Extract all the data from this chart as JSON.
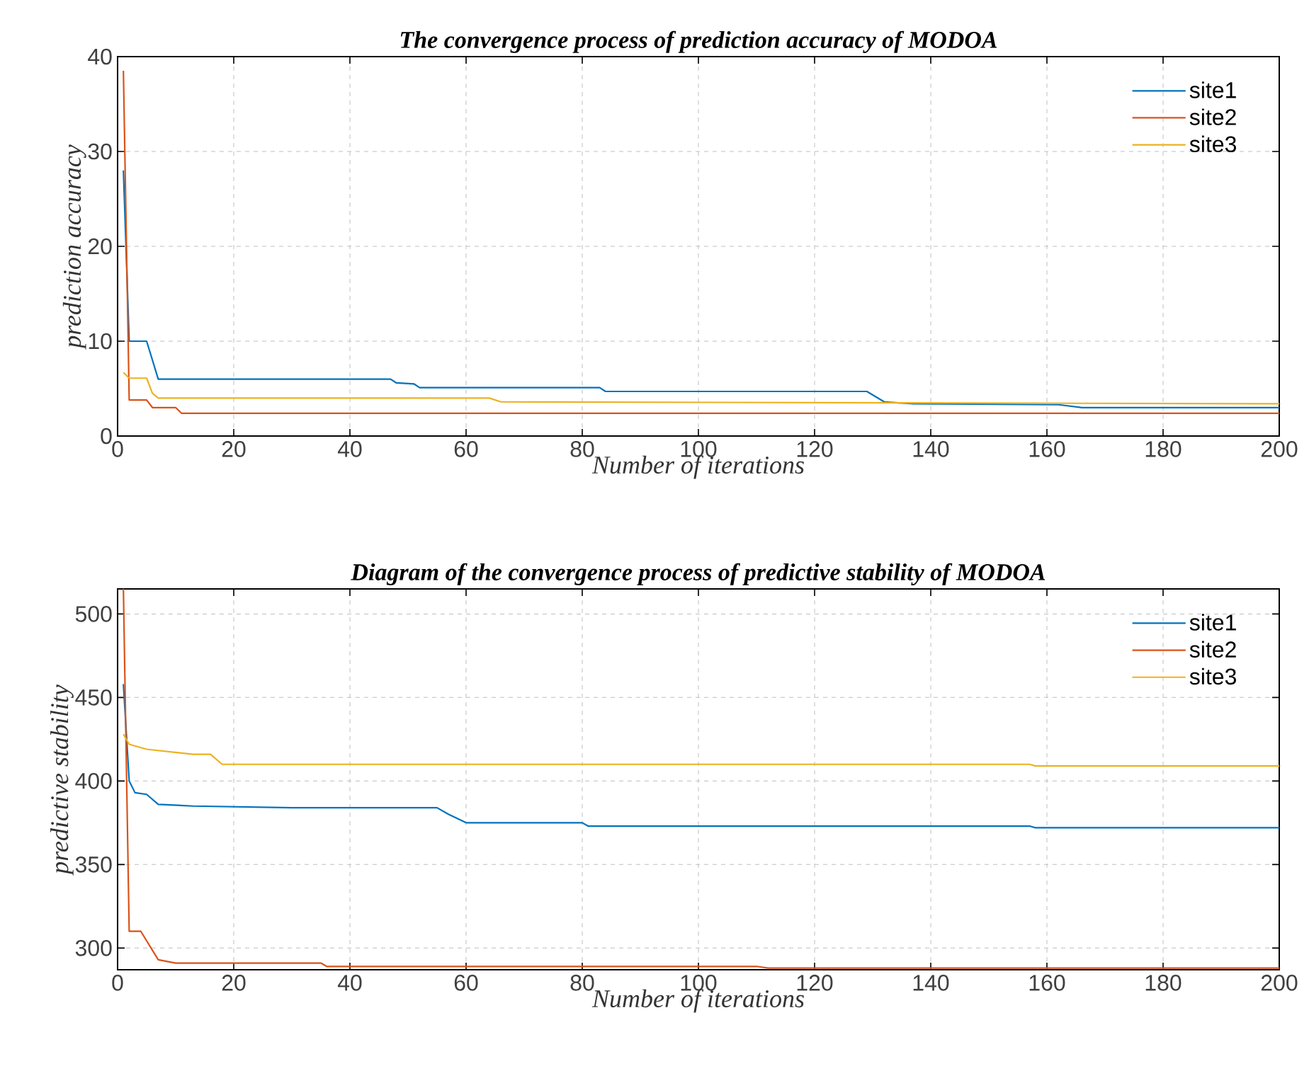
{
  "chart_data": [
    {
      "type": "line",
      "title": "The convergence process of prediction accuracy of MODOA",
      "xlabel": "Number of iterations",
      "ylabel": "prediction accuracy",
      "xlim": [
        0,
        200
      ],
      "ylim": [
        0,
        40
      ],
      "xticks": [
        0,
        20,
        40,
        60,
        80,
        100,
        120,
        140,
        160,
        180,
        200
      ],
      "yticks": [
        0,
        10,
        20,
        30,
        40
      ],
      "grid": true,
      "legend": "top right",
      "line_style": "solid",
      "series": [
        {
          "name": "site1",
          "color": "#0072bd",
          "x": [
            1,
            2,
            5,
            6,
            7,
            47,
            48,
            51,
            52,
            83,
            84,
            129,
            132,
            137,
            162,
            166,
            200
          ],
          "values": [
            28,
            10,
            10,
            8,
            6,
            6,
            5.6,
            5.5,
            5.1,
            5.1,
            4.7,
            4.7,
            3.6,
            3.4,
            3.3,
            3.0,
            3.0
          ]
        },
        {
          "name": "site2",
          "color": "#d95319",
          "x": [
            1,
            2,
            5,
            6,
            10,
            11,
            200
          ],
          "values": [
            38.5,
            3.8,
            3.8,
            3.0,
            3.0,
            2.4,
            2.4
          ]
        },
        {
          "name": "site3",
          "color": "#edb120",
          "x": [
            1,
            2,
            5,
            6,
            7,
            64,
            66,
            200
          ],
          "values": [
            6.7,
            6.1,
            6.1,
            4.5,
            4.0,
            4.0,
            3.6,
            3.4
          ]
        }
      ]
    },
    {
      "type": "line",
      "title": "Diagram of the convergence process of predictive stability of MODOA",
      "xlabel": "Number of iterations",
      "ylabel": "predictive stability",
      "xlim": [
        0,
        200
      ],
      "ylim": [
        287,
        515
      ],
      "xticks": [
        0,
        20,
        40,
        60,
        80,
        100,
        120,
        140,
        160,
        180,
        200
      ],
      "yticks": [
        300,
        350,
        400,
        450,
        500
      ],
      "grid": true,
      "legend": "top right",
      "line_style": "solid",
      "series": [
        {
          "name": "site1",
          "color": "#0072bd",
          "x": [
            1,
            2,
            3,
            5,
            7,
            13,
            30,
            55,
            57,
            60,
            80,
            81,
            157,
            158,
            200
          ],
          "values": [
            458,
            400,
            393,
            392,
            386,
            385,
            384,
            384,
            380,
            375,
            375,
            373,
            373,
            372,
            372
          ]
        },
        {
          "name": "site2",
          "color": "#d95319",
          "x": [
            1,
            2,
            4,
            7,
            10,
            35,
            36,
            110,
            112,
            200
          ],
          "values": [
            515,
            310,
            310,
            293,
            291,
            291,
            289,
            289,
            288,
            288
          ]
        },
        {
          "name": "site3",
          "color": "#edb120",
          "x": [
            1,
            2,
            5,
            13,
            16,
            18,
            157,
            158,
            200
          ],
          "values": [
            428,
            422,
            419,
            416,
            416,
            410,
            410,
            409,
            409
          ]
        }
      ]
    }
  ]
}
